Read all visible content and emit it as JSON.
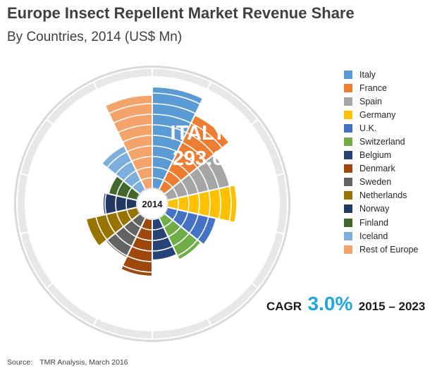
{
  "title": "Europe Insect Repellent Market Revenue Share",
  "subtitle": "By Countries, 2014 (US$ Mn)",
  "chart_data": {
    "type": "pie",
    "variant": "polar-area",
    "center_label": "2014",
    "callout": {
      "category": "ITALY",
      "value": "293.6"
    },
    "series": [
      {
        "name": "Italy",
        "value": 293.6,
        "color": "#5B9BD5"
      },
      {
        "name": "France",
        "value": 240,
        "color": "#ED7D31"
      },
      {
        "name": "Spain",
        "value": 185,
        "color": "#A5A5A5"
      },
      {
        "name": "Germany",
        "value": 200,
        "color": "#FFC000"
      },
      {
        "name": "U.K.",
        "value": 145,
        "color": "#4472C4"
      },
      {
        "name": "Switzerland",
        "value": 135,
        "color": "#70AD47"
      },
      {
        "name": "Belgium",
        "value": 118,
        "color": "#264478"
      },
      {
        "name": "Denmark",
        "value": 165,
        "color": "#9E480E"
      },
      {
        "name": "Sweden",
        "value": 128,
        "color": "#636363"
      },
      {
        "name": "Netherlands",
        "value": 152,
        "color": "#997300"
      },
      {
        "name": "Norway",
        "value": 98,
        "color": "#203864"
      },
      {
        "name": "Finland",
        "value": 85,
        "color": "#43682B"
      },
      {
        "name": "Iceland",
        "value": 142,
        "color": "#7CAFDD"
      },
      {
        "name": "Rest of Europe",
        "value": 270,
        "color": "#F4A46A"
      }
    ]
  },
  "cagr": {
    "label": "CAGR",
    "value": "3.0%",
    "range": "2015 – 2023",
    "value_color": "#1FA7E0"
  },
  "source": {
    "label": "Source:",
    "text": "TMR Analysis, March 2016"
  }
}
